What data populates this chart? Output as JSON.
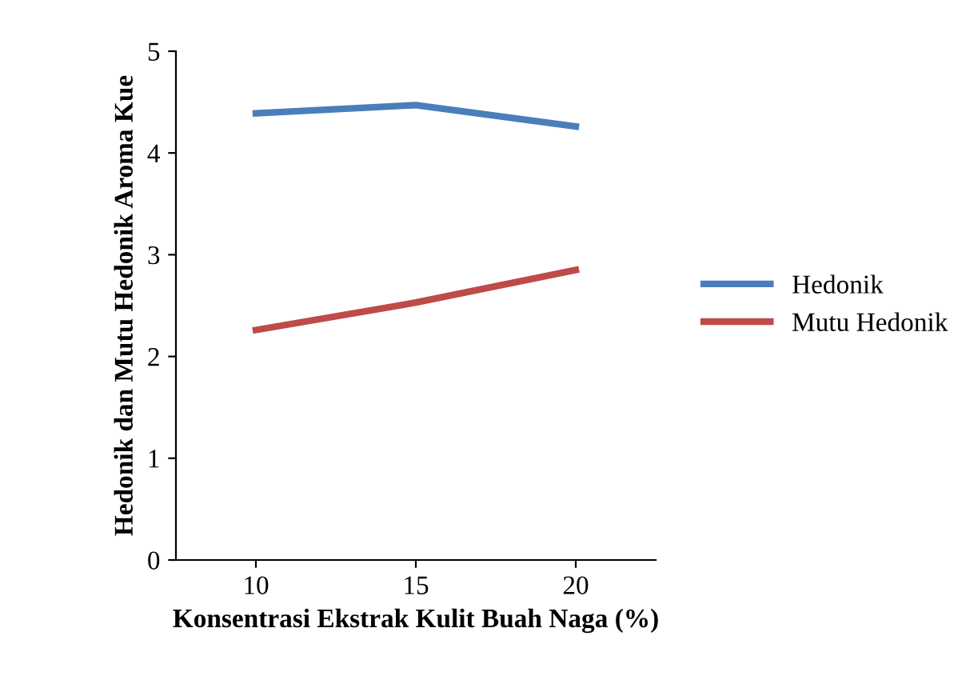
{
  "chart_data": {
    "type": "line",
    "xlabel": "Konsentrasi Ekstrak Kulit Buah Naga (%)",
    "ylabel": "Hedonik dan Mutu Hedonik Aroma Kue",
    "categories": [
      "10",
      "15",
      "20"
    ],
    "series": [
      {
        "name": "Hedonik",
        "color": "#4a7ebb",
        "values": [
          4.39,
          4.47,
          4.26
        ]
      },
      {
        "name": "Mutu Hedonik",
        "color": "#be4b48",
        "values": [
          2.26,
          2.53,
          2.85
        ]
      }
    ],
    "ylim": [
      0,
      5
    ],
    "yticks": [
      0,
      1,
      2,
      3,
      4,
      5
    ],
    "grid": false,
    "legend": "right",
    "marker": "none",
    "line_style": "solid"
  }
}
